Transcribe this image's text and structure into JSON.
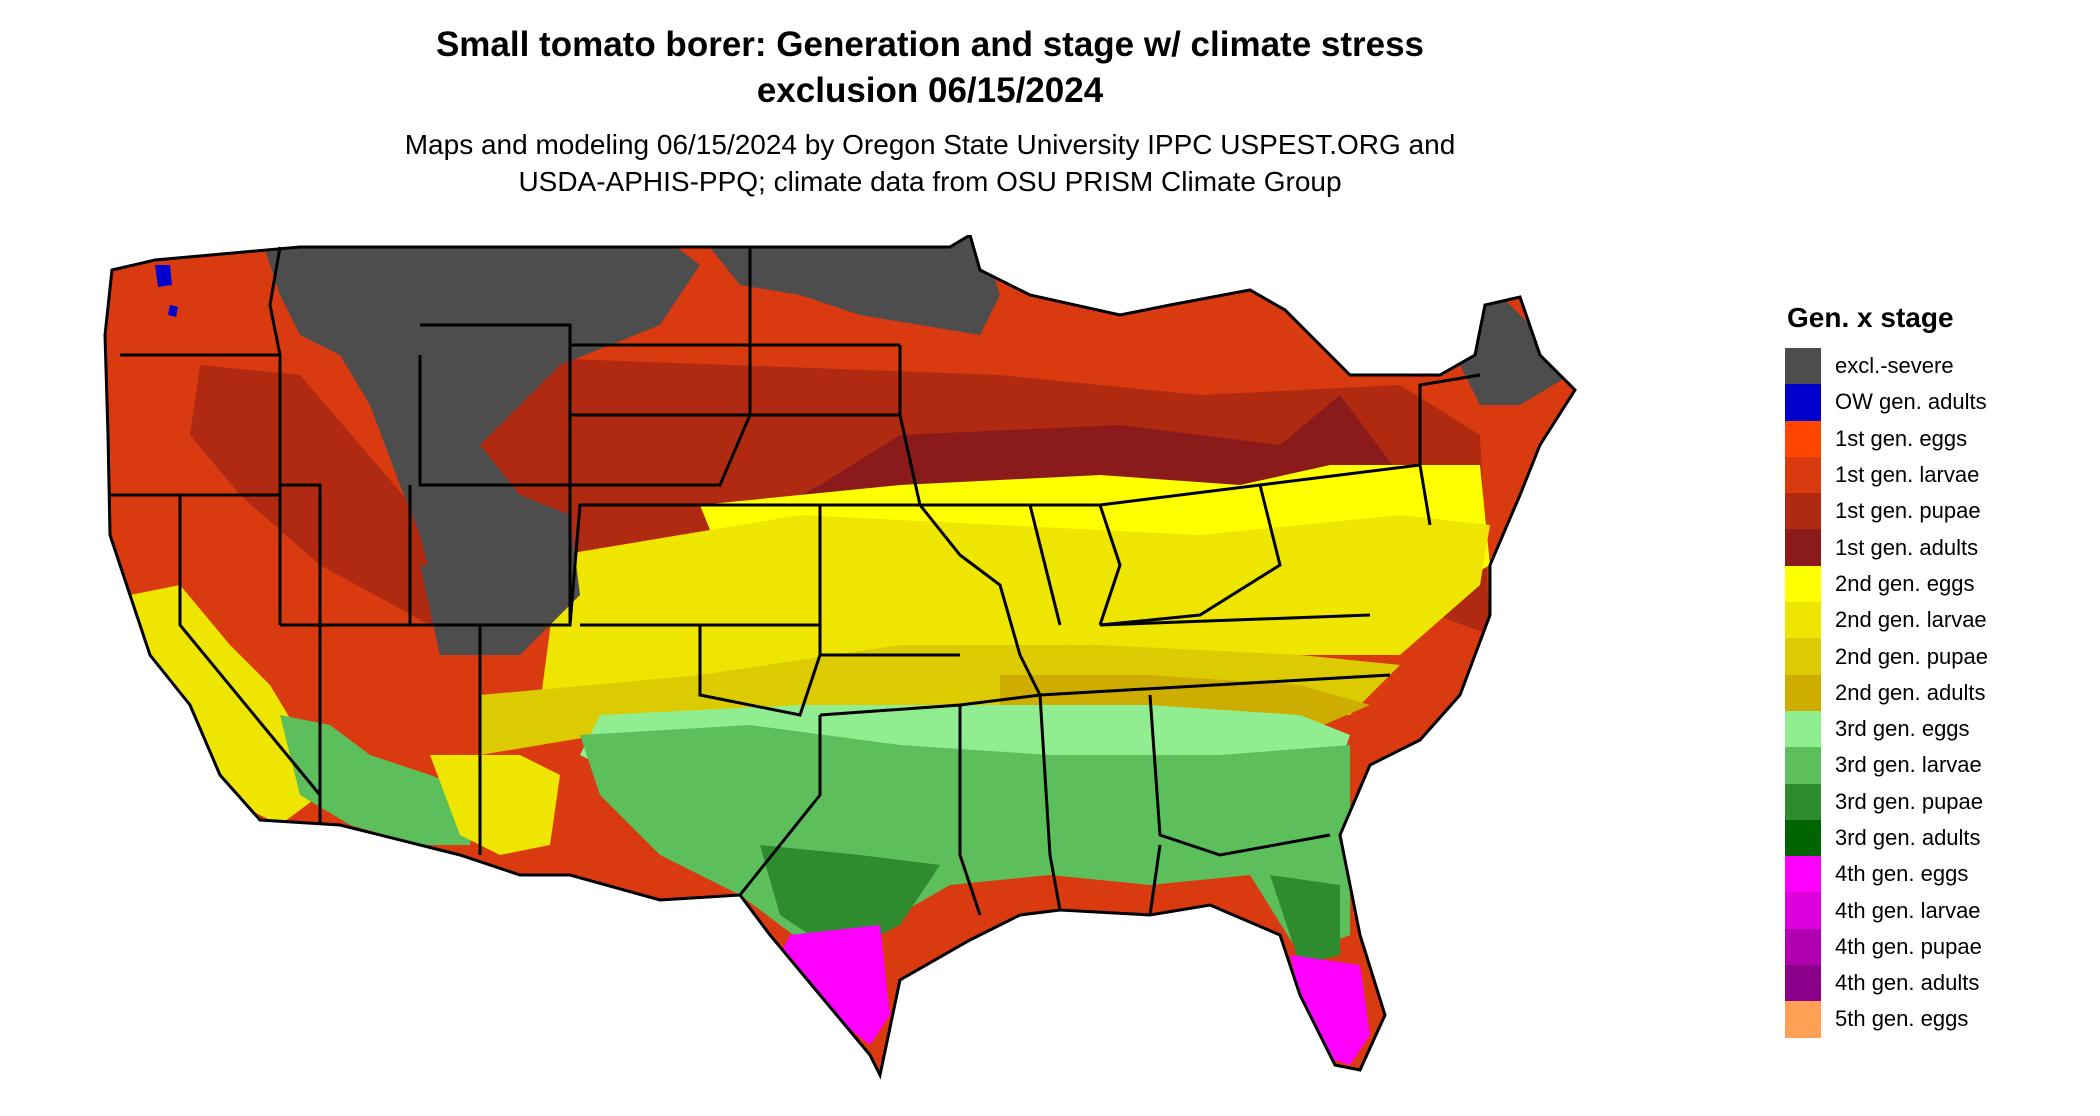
{
  "title": {
    "line1": "Small tomato borer: Generation and stage w/ climate stress",
    "line2": "exclusion 06/15/2024"
  },
  "subtitle": {
    "line1": "Maps and modeling 06/15/2024 by Oregon State University IPPC USPEST.ORG and",
    "line2": "USDA-APHIS-PPQ; climate data from OSU PRISM Climate Group"
  },
  "legend": {
    "title": "Gen. x stage",
    "items": [
      {
        "label": "excl.-severe",
        "color": "#4d4d4d"
      },
      {
        "label": "OW gen. adults",
        "color": "#0000cd"
      },
      {
        "label": "1st gen. eggs",
        "color": "#ff4500"
      },
      {
        "label": "1st gen. larvae",
        "color": "#d93a10"
      },
      {
        "label": "1st gen. pupae",
        "color": "#b02a12"
      },
      {
        "label": "1st gen. adults",
        "color": "#8b1a1a"
      },
      {
        "label": "2nd gen. eggs",
        "color": "#ffff00"
      },
      {
        "label": "2nd gen. larvae",
        "color": "#eee600"
      },
      {
        "label": "2nd gen. pupae",
        "color": "#dccb00"
      },
      {
        "label": "2nd gen. adults",
        "color": "#cdad00"
      },
      {
        "label": "3rd gen. eggs",
        "color": "#90ee90"
      },
      {
        "label": "3rd gen. larvae",
        "color": "#5cbf5c"
      },
      {
        "label": "3rd gen. pupae",
        "color": "#2e8b2e"
      },
      {
        "label": "3rd gen. adults",
        "color": "#006400"
      },
      {
        "label": "4th gen. eggs",
        "color": "#ff00ff"
      },
      {
        "label": "4th gen. larvae",
        "color": "#dd00dd"
      },
      {
        "label": "4th gen. pupae",
        "color": "#b000b0"
      },
      {
        "label": "4th gen. adults",
        "color": "#8b008b"
      },
      {
        "label": "5th gen. eggs",
        "color": "#ffa054"
      }
    ]
  }
}
